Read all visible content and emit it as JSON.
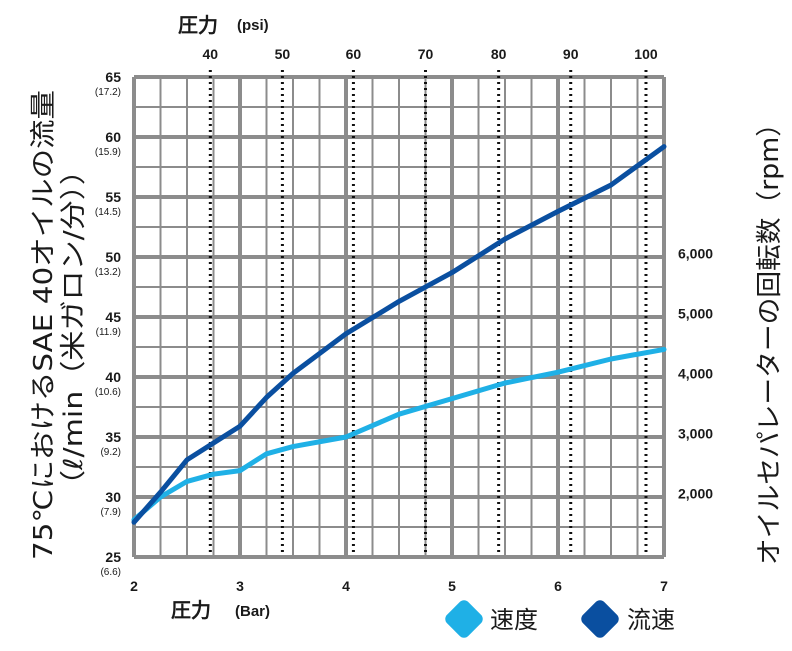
{
  "chart_data": {
    "type": "line",
    "x": [
      2.0,
      2.25,
      2.5,
      2.75,
      3.0,
      3.25,
      3.5,
      4.0,
      4.5,
      5.0,
      5.5,
      6.0,
      6.5,
      7.0
    ],
    "series": [
      {
        "name": "速度",
        "color": "#1fb0e6",
        "values": [
          28.1,
          30.0,
          31.3,
          31.9,
          32.2,
          33.6,
          34.2,
          35.0,
          36.9,
          38.2,
          39.5,
          40.4,
          41.5,
          42.3
        ]
      },
      {
        "name": "流速",
        "color": "#0a4fa0",
        "values": [
          27.9,
          30.4,
          33.1,
          34.5,
          35.9,
          38.3,
          40.3,
          43.6,
          46.3,
          48.7,
          51.5,
          53.8,
          56.0,
          59.2
        ]
      }
    ],
    "xlabel_main": "圧力",
    "xlabel_unit": "(Bar)",
    "xlim": [
      2,
      7
    ],
    "x_ticks": [
      "2",
      "3",
      "4",
      "5",
      "6",
      "7"
    ],
    "top_label_main": "圧力",
    "top_label_unit": "(psi)",
    "top_ticks": [
      {
        "label": "40",
        "bar": 2.72
      },
      {
        "label": "50",
        "bar": 3.4
      },
      {
        "label": "60",
        "bar": 4.07
      },
      {
        "label": "70",
        "bar": 4.75
      },
      {
        "label": "80",
        "bar": 5.44
      },
      {
        "label": "90",
        "bar": 6.12
      },
      {
        "label": "100",
        "bar": 6.83
      }
    ],
    "ylabel_line1": "75℃におけるSAE 40オイルの流量",
    "ylabel_line2": "（ℓ/min（米ガロン/分））",
    "ylim": [
      25,
      65
    ],
    "y_ticks": [
      {
        "value": 25,
        "label": "25",
        "sub": "(6.6)"
      },
      {
        "value": 30,
        "label": "30",
        "sub": "(7.9)"
      },
      {
        "value": 35,
        "label": "35",
        "sub": "(9.2)"
      },
      {
        "value": 40,
        "label": "40",
        "sub": "(10.6)"
      },
      {
        "value": 45,
        "label": "45",
        "sub": "(11.9)"
      },
      {
        "value": 50,
        "label": "50",
        "sub": "(13.2)"
      },
      {
        "value": 55,
        "label": "55",
        "sub": "(14.5)"
      },
      {
        "value": 60,
        "label": "60",
        "sub": "(15.9)"
      },
      {
        "value": 65,
        "label": "65",
        "sub": "(17.2)"
      }
    ],
    "right_label": "オイルセパレーターの回転数（rpm）",
    "right_ticks": [
      {
        "label": "2,000",
        "y": 30.3
      },
      {
        "label": "3,000",
        "y": 35.3
      },
      {
        "label": "4,000",
        "y": 40.3
      },
      {
        "label": "5,000",
        "y": 45.3
      },
      {
        "label": "6,000",
        "y": 50.3
      }
    ],
    "grid": true,
    "legend_position": "bottom-right"
  },
  "colors": {
    "grid": "#8c8c8c",
    "text": "#1a1a1a"
  }
}
